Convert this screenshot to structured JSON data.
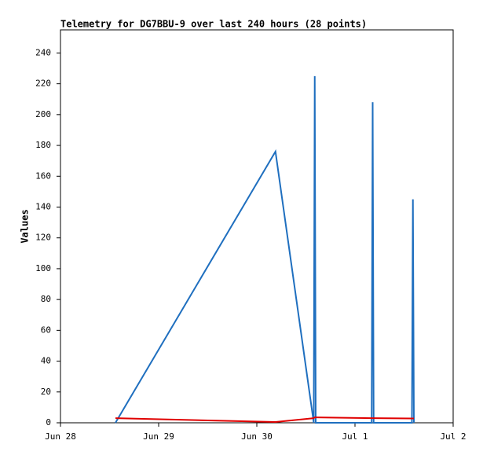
{
  "chart_data": {
    "type": "line",
    "title": "Telemetry for DG7BBU-9 over last 240 hours (28 points)",
    "y_label": "Values",
    "x": [
      0.56,
      2.19,
      2.58,
      2.59,
      2.595,
      2.6,
      3.17,
      3.18,
      3.185,
      3.19,
      3.58,
      3.59,
      3.595,
      3.6
    ],
    "series": [
      {
        "color": "#1f6fbf",
        "values": [
          0,
          176,
          0,
          225,
          112,
          0,
          0,
          208,
          104,
          0,
          0,
          145,
          73,
          0
        ]
      },
      {
        "color": "#e00000",
        "values": [
          3,
          0.5,
          3,
          3.5,
          3.5,
          3.5,
          3,
          3,
          3,
          3,
          2.8,
          2.8,
          2.8,
          2.8
        ]
      }
    ],
    "xlim": [
      0,
      4
    ],
    "xticks": [
      {
        "value": 0,
        "label": "Jun 28"
      },
      {
        "value": 1,
        "label": "Jun 29"
      },
      {
        "value": 2,
        "label": "Jun 30"
      },
      {
        "value": 3,
        "label": "Jul 1"
      },
      {
        "value": 4,
        "label": "Jul 2"
      }
    ],
    "ylim": [
      0,
      255
    ],
    "yticks": [
      0,
      20,
      40,
      60,
      80,
      100,
      120,
      140,
      160,
      180,
      200,
      220,
      240
    ]
  }
}
